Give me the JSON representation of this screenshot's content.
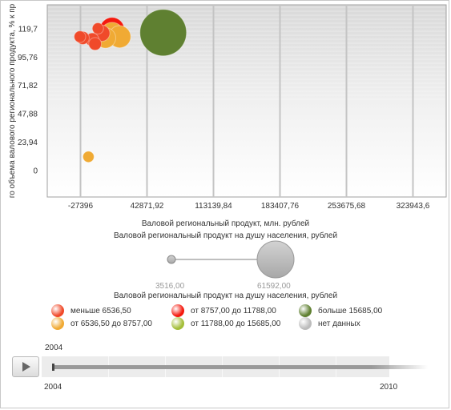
{
  "chart_data": {
    "type": "scatter",
    "subtype": "bubble",
    "xlabel": "Валовой региональный продукт, млн. рублей",
    "ylabel": "го объема валового регионального продукта, % к пр",
    "x_ticks": [
      "-27396",
      "42871,92",
      "113139,84",
      "183407,76",
      "253675,68",
      "323943,6"
    ],
    "x_tick_values": [
      -27396,
      42871.92,
      113139.84,
      183407.76,
      253675.68,
      323943.6
    ],
    "y_ticks": [
      "0",
      "23,94",
      "47,88",
      "71,82",
      "95,76",
      "119,7"
    ],
    "y_tick_values": [
      0,
      23.94,
      47.88,
      71.82,
      95.76,
      119.7
    ],
    "xlim": [
      -62530,
      359078
    ],
    "ylim": [
      -22.5,
      140
    ],
    "grid": true,
    "size_legend": {
      "title": "Валовой региональный продукт на душу населения, рублей",
      "min_label": "3516,00",
      "max_label": "61592,00",
      "min_value": 3516,
      "max_value": 61592
    },
    "color_legend_title": "Валовой региональный продукт на душу населения, рублей",
    "color_legend": [
      {
        "label": "меньше 6536,50",
        "color": "#f04a2a"
      },
      {
        "label": "от 8757,00 до 11788,00",
        "color": "#f41a0e"
      },
      {
        "label": "больше 15685,00",
        "color": "#5f8031"
      },
      {
        "label": "от 6536,50 до 8757,00",
        "color": "#f0aa34"
      },
      {
        "label": "от 11788,00 до 15685,00",
        "color": "#a4be3a"
      },
      {
        "label": "нет данных",
        "color": "#bcbcbc"
      }
    ],
    "points": [
      {
        "x": -19000,
        "y": 11.5,
        "size": 3516,
        "color": "#f0aa34"
      },
      {
        "x": 60000,
        "y": 116.5,
        "size": 61592,
        "color": "#5f8031"
      },
      {
        "x": 6000,
        "y": 119,
        "size": 17000,
        "color": "#f41a0e"
      },
      {
        "x": 6000,
        "y": 115.5,
        "size": 15000,
        "color": "#f0aa34"
      },
      {
        "x": 14000,
        "y": 113,
        "size": 14000,
        "color": "#f0aa34"
      },
      {
        "x": -1000,
        "y": 112,
        "size": 12000,
        "color": "#f0aa34"
      },
      {
        "x": -5000,
        "y": 116,
        "size": 7500,
        "color": "#f04a2a"
      },
      {
        "x": -12000,
        "y": 107,
        "size": 4600,
        "color": "#f04a2a"
      },
      {
        "x": -15000,
        "y": 110.5,
        "size": 5200,
        "color": "#f04a2a"
      },
      {
        "x": -25000,
        "y": 112,
        "size": 4800,
        "color": "#f04a2a"
      },
      {
        "x": -28000,
        "y": 113,
        "size": 3800,
        "color": "#f04a2a"
      },
      {
        "x": -9000,
        "y": 120,
        "size": 3600,
        "color": "#f04a2a"
      }
    ]
  },
  "timeline": {
    "current_label": "2004",
    "start_label": "2004",
    "end_label": "2010",
    "position": 0
  }
}
